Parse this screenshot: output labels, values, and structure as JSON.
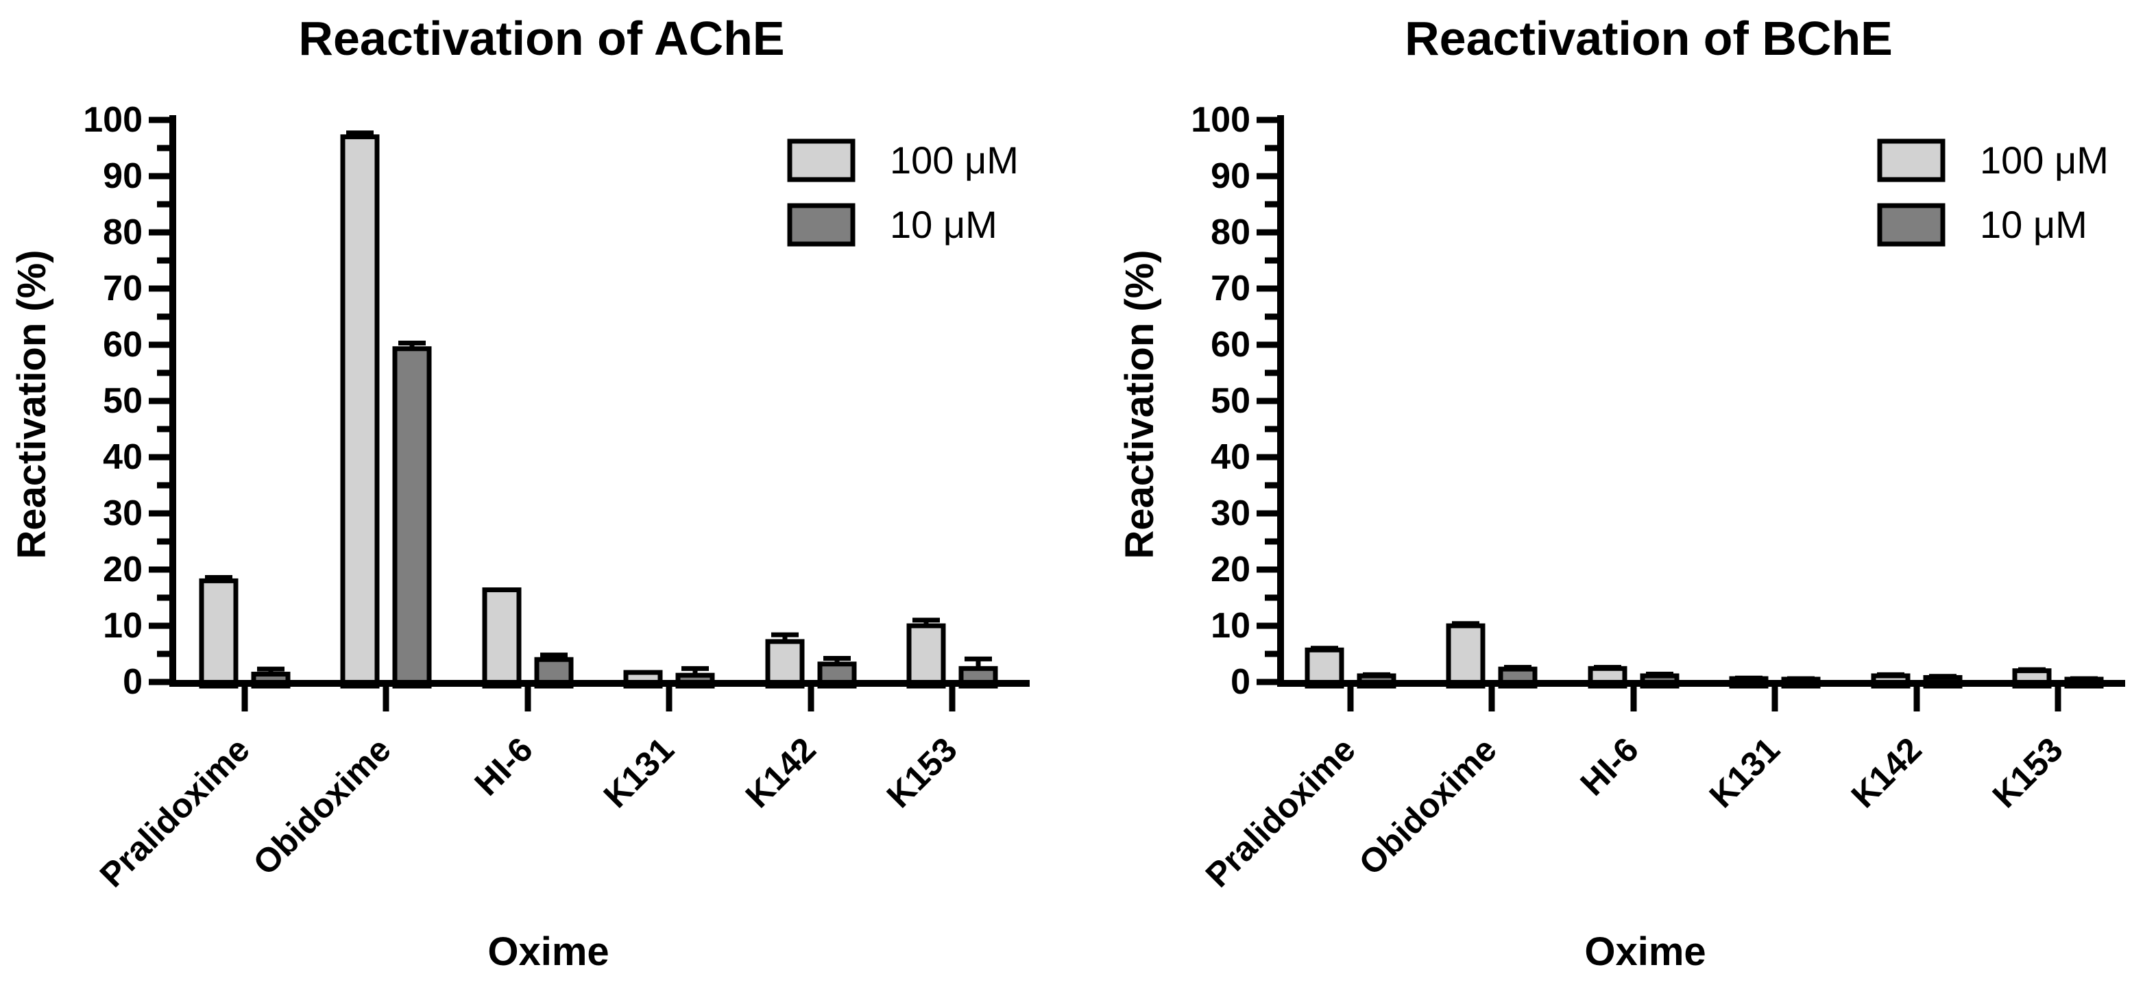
{
  "figure": {
    "background": "#ffffff",
    "axis_color": "#000000",
    "text_color": "#000000"
  },
  "chart_data": [
    {
      "type": "bar",
      "title": "Reactivation of AChE",
      "xlabel": "Oxime",
      "ylabel": "Reactivation (%)",
      "ylim": [
        0,
        100
      ],
      "ytick_step": 10,
      "grid": false,
      "legend_position": "top-right",
      "error_bars": "upper",
      "categories": [
        "Pralidoxime",
        "Obidoxime",
        "HI-6",
        "K131",
        "K142",
        "K153"
      ],
      "series": [
        {
          "name": "100 μM",
          "color": "#d2d2d2",
          "values": [
            18,
            97,
            16.4,
            1.7,
            7.2,
            10
          ],
          "errors": [
            0.6,
            0.7,
            0,
            0,
            1.2,
            1.0
          ]
        },
        {
          "name": "10 μM",
          "color": "#7f7f7f",
          "values": [
            1.4,
            59.3,
            4.0,
            1.2,
            3.2,
            2.4
          ],
          "errors": [
            0.9,
            1.0,
            0.8,
            1.2,
            1.0,
            1.7
          ]
        }
      ]
    },
    {
      "type": "bar",
      "title": "Reactivation of BChE",
      "xlabel": "Oxime",
      "ylabel": "Reactivation (%)",
      "ylim": [
        0,
        100
      ],
      "ytick_step": 10,
      "grid": false,
      "legend_position": "top-right",
      "error_bars": "upper",
      "categories": [
        "Pralidoxime",
        "Obidoxime",
        "HI-6",
        "K131",
        "K142",
        "K153"
      ],
      "series": [
        {
          "name": "100 μM",
          "color": "#d2d2d2",
          "values": [
            5.7,
            10,
            2.4,
            0.6,
            1.1,
            2.0
          ],
          "errors": [
            0.3,
            0.4,
            0.2,
            0.1,
            0.2,
            0.2
          ]
        },
        {
          "name": "10 μM",
          "color": "#7f7f7f",
          "values": [
            1.1,
            2.3,
            1.1,
            0.5,
            0.8,
            0.5
          ],
          "errors": [
            0.2,
            0.3,
            0.3,
            0.1,
            0.2,
            0.1
          ]
        }
      ]
    }
  ]
}
